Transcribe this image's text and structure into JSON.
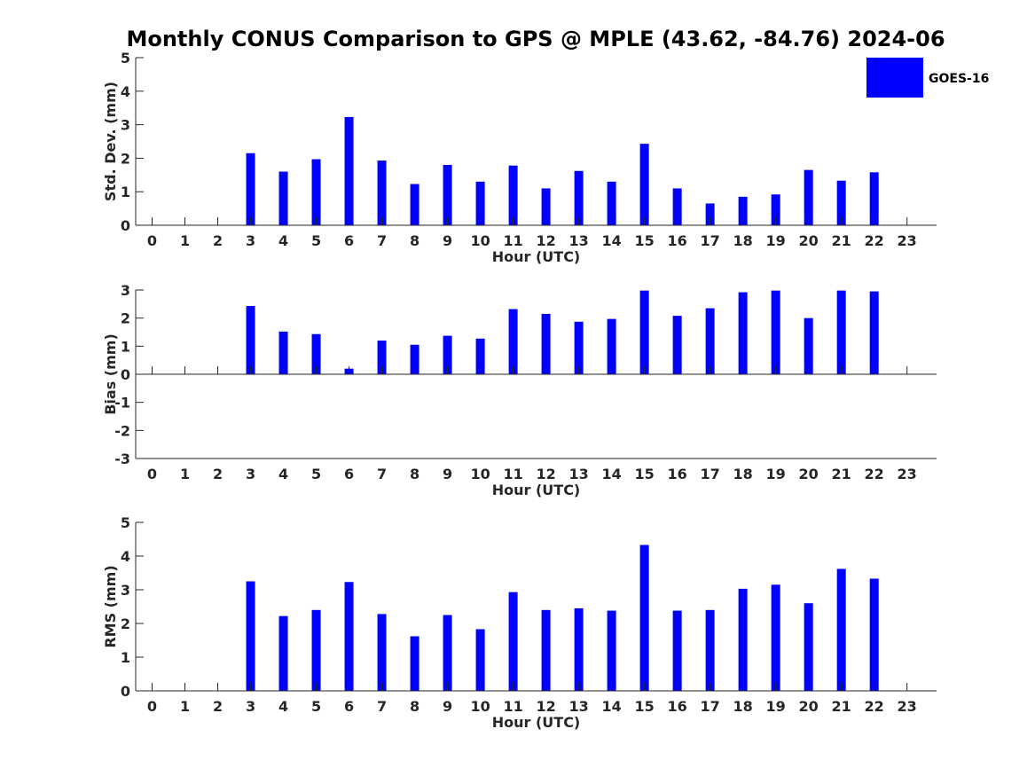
{
  "figure": {
    "title": "Monthly CONUS Comparison to GPS @ MPLE (43.62, -84.76) 2024-06",
    "legend": {
      "label": "GOES-16",
      "color": "#0000ff",
      "placement": "top-right"
    }
  },
  "chart_data": [
    {
      "type": "bar",
      "ylabel": "Std. Dev. (mm)",
      "xlabel": "Hour (UTC)",
      "x": [
        0,
        1,
        2,
        3,
        4,
        5,
        6,
        7,
        8,
        9,
        10,
        11,
        12,
        13,
        14,
        15,
        16,
        17,
        18,
        19,
        20,
        21,
        22,
        23
      ],
      "values": [
        null,
        null,
        null,
        2.15,
        1.6,
        1.97,
        3.23,
        1.93,
        1.23,
        1.8,
        1.3,
        1.78,
        1.1,
        1.62,
        1.3,
        2.43,
        1.1,
        0.65,
        0.85,
        0.92,
        1.65,
        1.33,
        1.58,
        null
      ],
      "ylim": [
        0,
        5
      ],
      "yticks": [
        0,
        1,
        2,
        3,
        4,
        5
      ],
      "xlim": [
        -0.5,
        23.9
      ],
      "color": "#0000ff"
    },
    {
      "type": "bar",
      "ylabel": "Bias (mm)",
      "xlabel": "Hour (UTC)",
      "x": [
        0,
        1,
        2,
        3,
        4,
        5,
        6,
        7,
        8,
        9,
        10,
        11,
        12,
        13,
        14,
        15,
        16,
        17,
        18,
        19,
        20,
        21,
        22,
        23
      ],
      "values": [
        null,
        null,
        null,
        2.43,
        1.52,
        1.43,
        0.2,
        1.2,
        1.05,
        1.37,
        1.27,
        2.32,
        2.15,
        1.87,
        1.97,
        2.98,
        2.08,
        2.35,
        2.92,
        2.98,
        2.0,
        2.98,
        2.95,
        null
      ],
      "ylim": [
        -3,
        3
      ],
      "yticks": [
        -3,
        -2,
        -1,
        0,
        1,
        2,
        3
      ],
      "xlim": [
        -0.5,
        23.9
      ],
      "color": "#0000ff"
    },
    {
      "type": "bar",
      "ylabel": "RMS (mm)",
      "xlabel": "Hour (UTC)",
      "x": [
        0,
        1,
        2,
        3,
        4,
        5,
        6,
        7,
        8,
        9,
        10,
        11,
        12,
        13,
        14,
        15,
        16,
        17,
        18,
        19,
        20,
        21,
        22,
        23
      ],
      "values": [
        null,
        null,
        null,
        3.25,
        2.22,
        2.4,
        3.23,
        2.28,
        1.62,
        2.25,
        1.83,
        2.93,
        2.4,
        2.45,
        2.38,
        4.33,
        2.38,
        2.4,
        3.03,
        3.15,
        2.6,
        3.62,
        3.33,
        null
      ],
      "ylim": [
        0,
        5
      ],
      "yticks": [
        0,
        1,
        2,
        3,
        4,
        5
      ],
      "xlim": [
        -0.5,
        23.9
      ],
      "color": "#0000ff"
    }
  ]
}
